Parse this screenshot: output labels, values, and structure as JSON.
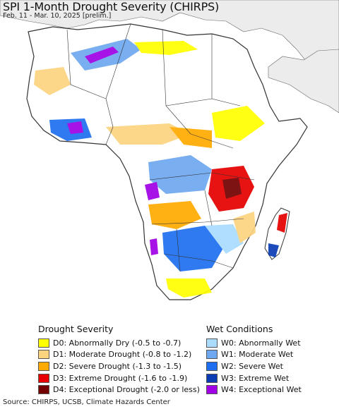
{
  "title": "SPI 1-Month Drought Severity (CHIRPS)",
  "subtitle": "Feb. 11 - Mar. 10, 2025 [prelim.]",
  "legend": {
    "drought": {
      "heading": "Drought Severity",
      "items": [
        {
          "label": "D0: Abnormally Dry (-0.5 to -0.7)",
          "color": "#ffff00"
        },
        {
          "label": "D1: Moderate Drought (-0.8 to -1.2)",
          "color": "#fcd37f"
        },
        {
          "label": "D2: Severe Drought (-1.3 to -1.5)",
          "color": "#ffaa00"
        },
        {
          "label": "D3: Extreme Drought (-1.6 to -1.9)",
          "color": "#e60000"
        },
        {
          "label": "D4: Exceptional Drought (-2.0 or less)",
          "color": "#730000"
        }
      ]
    },
    "wet": {
      "heading": "Wet Conditions",
      "items": [
        {
          "label": "W0: Abnormally Wet",
          "color": "#aadcff"
        },
        {
          "label": "W1: Moderate Wet",
          "color": "#6ea8f0"
        },
        {
          "label": "W2: Severe Wet",
          "color": "#1e6ef0"
        },
        {
          "label": "W3: Extreme Wet",
          "color": "#0a3cb4"
        },
        {
          "label": "W4: Exceptional Wet",
          "color": "#a000e6"
        }
      ]
    }
  },
  "source": "Source: CHIRPS, UCSB, Climate Hazards Center",
  "colors": {
    "ocean": "#ffffff",
    "land_outside": "#ececec",
    "land": "#ffffff",
    "border": "#333333"
  }
}
